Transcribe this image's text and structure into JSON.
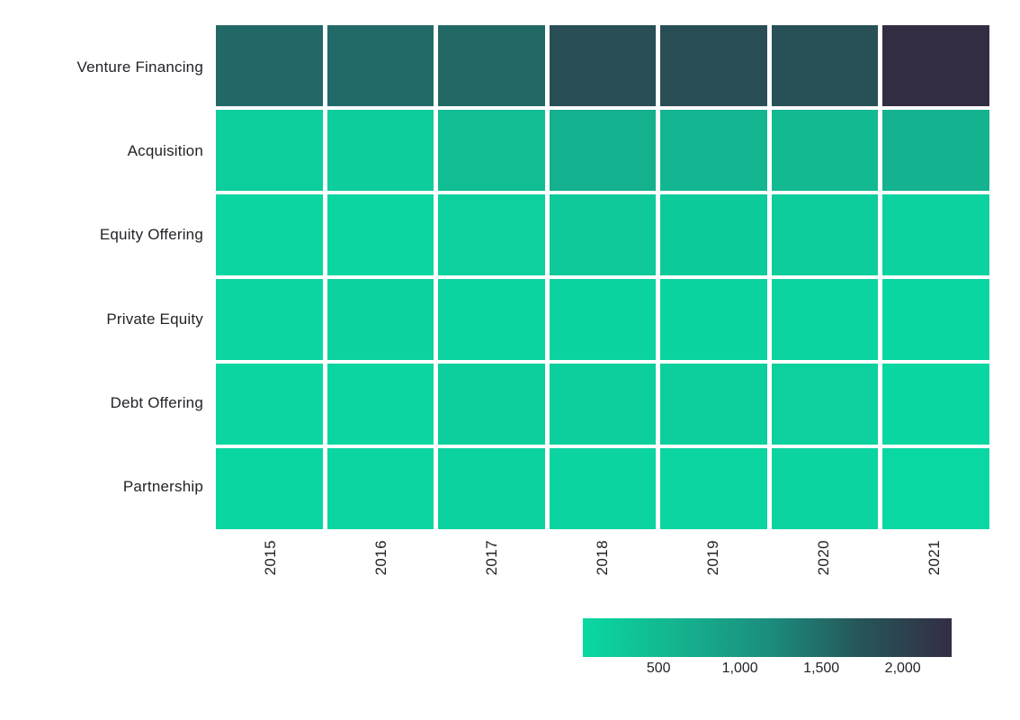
{
  "chart_data": {
    "type": "heatmap",
    "title": "",
    "x_axis_label": "",
    "y_axis_label": "",
    "x_categories": [
      "2015",
      "2016",
      "2017",
      "2018",
      "2019",
      "2020",
      "2021"
    ],
    "y_categories": [
      "Venture Financing",
      "Acquisition",
      "Equity Offering",
      "Private Equity",
      "Debt Offering",
      "Partnership"
    ],
    "series": [
      {
        "name": "Venture Financing",
        "values": [
          1550,
          1530,
          1540,
          1850,
          1860,
          1800,
          2300
        ]
      },
      {
        "name": "Acquisition",
        "values": [
          190,
          210,
          450,
          660,
          570,
          530,
          630
        ]
      },
      {
        "name": "Equity Offering",
        "values": [
          80,
          85,
          140,
          270,
          240,
          210,
          130
        ]
      },
      {
        "name": "Private Equity",
        "values": [
          65,
          130,
          95,
          110,
          110,
          95,
          60
        ]
      },
      {
        "name": "Debt Offering",
        "values": [
          65,
          80,
          175,
          175,
          170,
          140,
          60
        ]
      },
      {
        "name": "Partnership",
        "values": [
          60,
          90,
          125,
          95,
          80,
          95,
          35
        ]
      }
    ],
    "color_axis": {
      "min": 35,
      "max": 2300,
      "stops": [
        "#0ad8a2",
        "#14b48f",
        "#1b8e7e",
        "#26565a",
        "#332d44"
      ],
      "ticks": [
        {
          "value": 500,
          "label": "500"
        },
        {
          "value": 1000,
          "label": "1,000"
        },
        {
          "value": 1500,
          "label": "1,500"
        },
        {
          "value": 2000,
          "label": "2,000"
        }
      ]
    },
    "grid_line_color": "#ffffff",
    "label_color": "#222328",
    "legend_position": "bottom-right",
    "grid": "off"
  }
}
